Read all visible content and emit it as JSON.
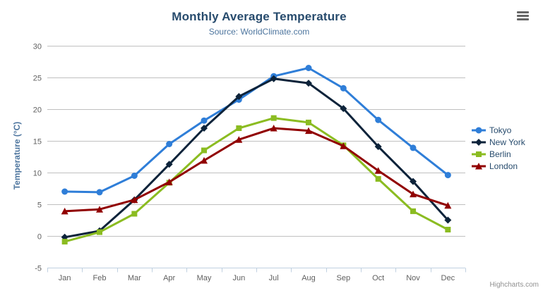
{
  "chart_data": {
    "type": "line",
    "title": "Monthly Average Temperature",
    "subtitle": "Source: WorldClimate.com",
    "xlabel": "",
    "ylabel": "Temperature (°C)",
    "categories": [
      "Jan",
      "Feb",
      "Mar",
      "Apr",
      "May",
      "Jun",
      "Jul",
      "Aug",
      "Sep",
      "Oct",
      "Nov",
      "Dec"
    ],
    "ylim": [
      -5,
      30
    ],
    "yticks": [
      -5,
      0,
      5,
      10,
      15,
      20,
      25,
      30
    ],
    "grid": true,
    "legend_position": "right",
    "series": [
      {
        "name": "Tokyo",
        "color": "#2f7ed8",
        "marker": "circle",
        "values": [
          7.0,
          6.9,
          9.5,
          14.5,
          18.2,
          21.5,
          25.2,
          26.5,
          23.3,
          18.3,
          13.9,
          9.6
        ]
      },
      {
        "name": "New York",
        "color": "#0d233a",
        "marker": "diamond",
        "values": [
          -0.2,
          0.8,
          5.7,
          11.3,
          17.0,
          22.0,
          24.8,
          24.1,
          20.1,
          14.1,
          8.6,
          2.5
        ]
      },
      {
        "name": "Berlin",
        "color": "#8bbc21",
        "marker": "square",
        "values": [
          -0.9,
          0.6,
          3.5,
          8.4,
          13.5,
          17.0,
          18.6,
          17.9,
          14.3,
          9.0,
          3.9,
          1.0
        ]
      },
      {
        "name": "London",
        "color": "#910000",
        "marker": "triangle",
        "values": [
          3.9,
          4.2,
          5.7,
          8.5,
          11.9,
          15.2,
          17.0,
          16.6,
          14.2,
          10.3,
          6.6,
          4.8
        ]
      }
    ],
    "credits": "Highcharts.com",
    "style": {
      "title_color": "#274b6d",
      "subtitle_color": "#4d759e",
      "grid_color": "#c0c0c0",
      "axis_line_color": "#c0d0e0",
      "tick_label_color": "#606060",
      "axis_title_color": "#4d759e",
      "legend_text_color": "#274b6d",
      "credits_color": "#909090",
      "export_icon_color": "#666666"
    }
  }
}
